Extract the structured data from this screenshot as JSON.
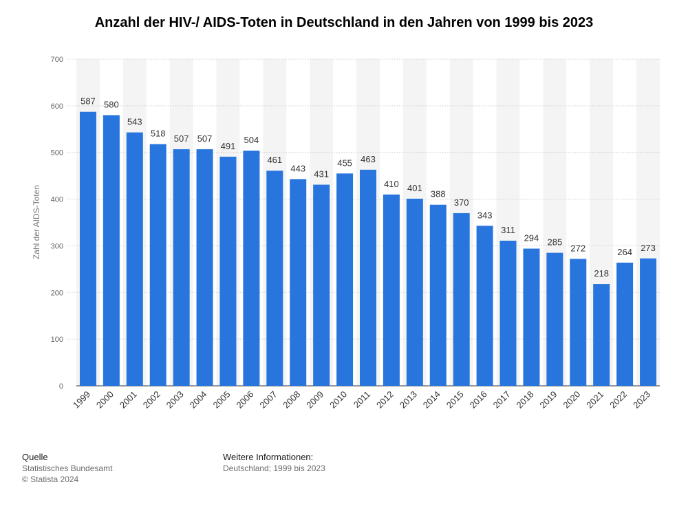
{
  "chart_data": {
    "type": "bar",
    "title": "Anzahl der HIV-/ AIDS-Toten in Deutschland in den Jahren von 1999 bis 2023",
    "xlabel": "",
    "ylabel": "Zahl der AIDS-Toten",
    "categories": [
      "1999",
      "2000",
      "2001",
      "2002",
      "2003",
      "2004",
      "2005",
      "2006",
      "2007",
      "2008",
      "2009",
      "2010",
      "2011",
      "2012",
      "2013",
      "2014",
      "2015",
      "2016",
      "2017",
      "2018",
      "2019",
      "2020",
      "2021",
      "2022",
      "2023"
    ],
    "values": [
      587,
      580,
      543,
      518,
      507,
      507,
      491,
      504,
      461,
      443,
      431,
      455,
      463,
      410,
      401,
      388,
      370,
      343,
      311,
      294,
      285,
      272,
      218,
      264,
      273
    ],
    "ylim": [
      0,
      700
    ],
    "yticks": [
      0,
      100,
      200,
      300,
      400,
      500,
      600,
      700
    ],
    "grid": true,
    "bar_color": "#2876dd"
  },
  "footer": {
    "source_heading": "Quelle",
    "source_name": "Statistisches Bundesamt",
    "copyright": "© Statista 2024",
    "info_heading": "Weitere Informationen:",
    "info_text": "Deutschland; 1999 bis 2023"
  },
  "colors": {
    "band": "#f4f4f4",
    "axis_text": "#666666",
    "label_text": "#333333"
  }
}
